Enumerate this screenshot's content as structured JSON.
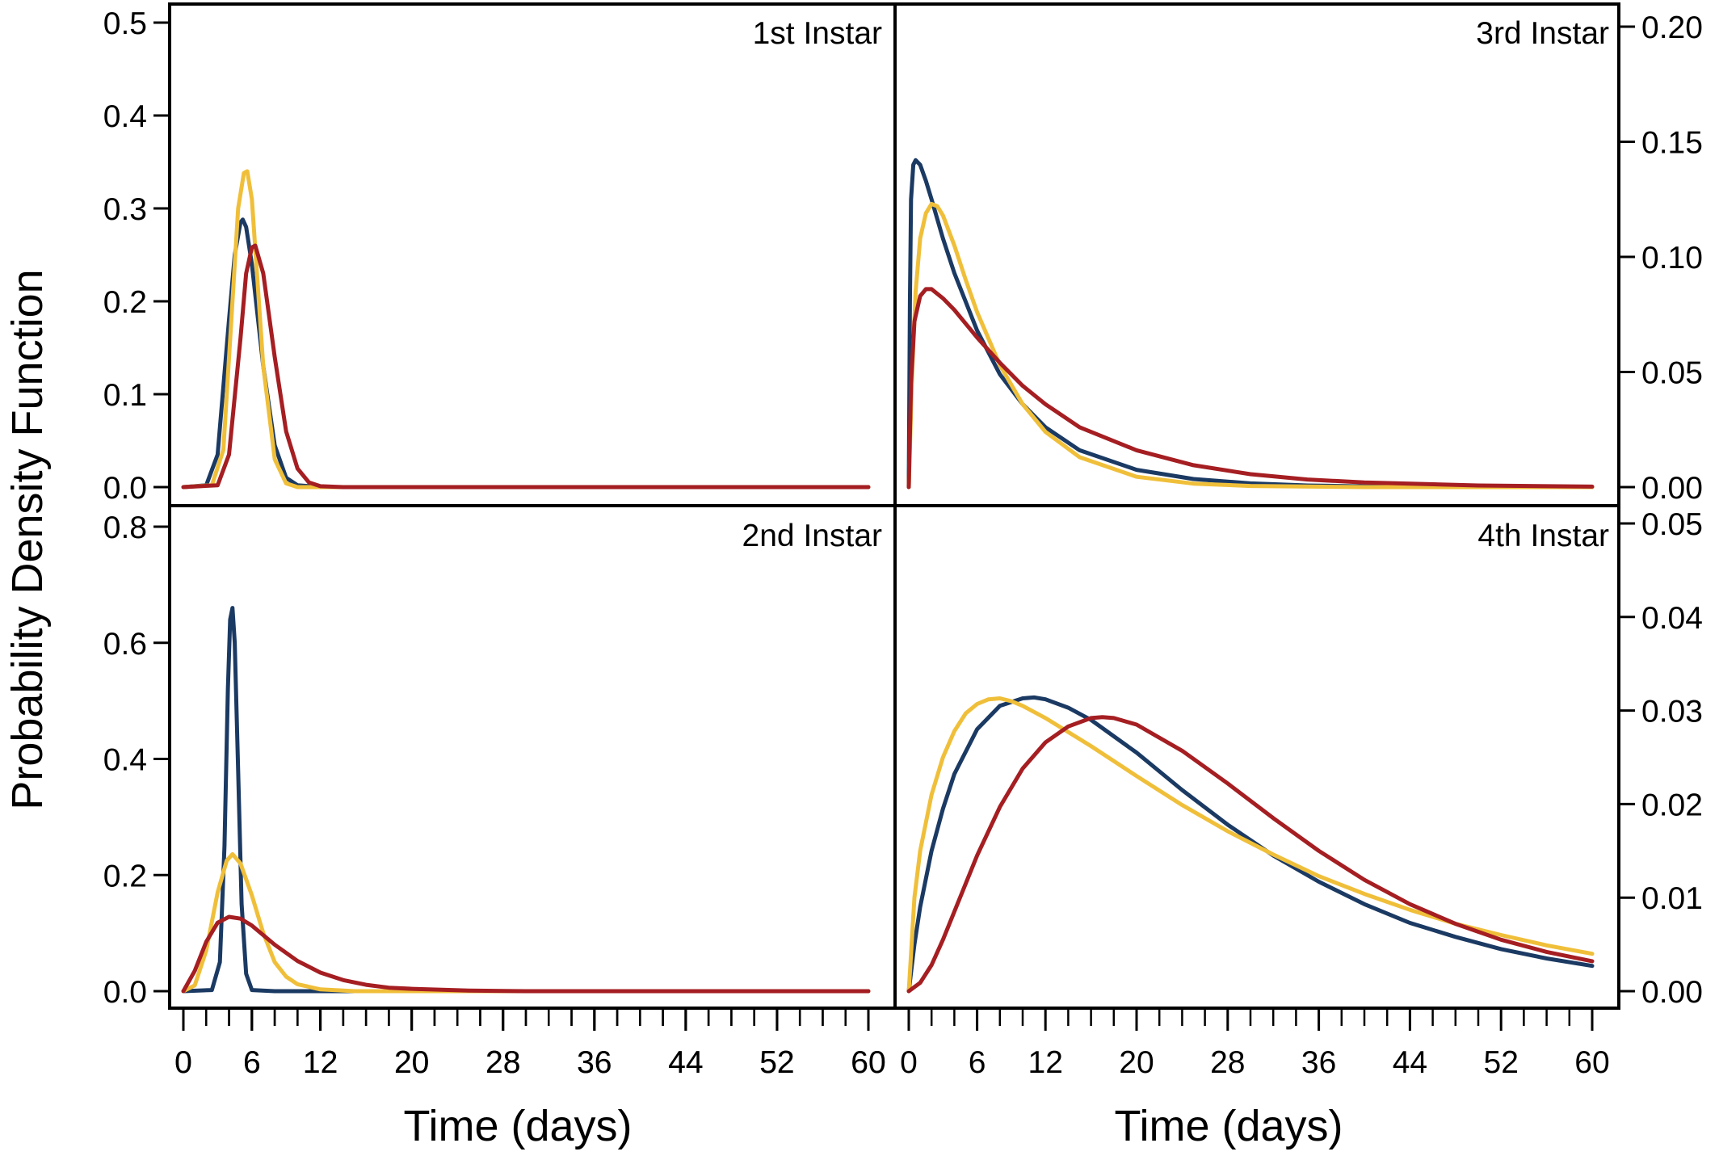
{
  "figure": {
    "ylabel": "Probability Density Function",
    "xlabel_left": "Time (days)",
    "xlabel_right": "Time (days)"
  },
  "series_colors": [
    "#1b3a63",
    "#f0bf3a",
    "#a51e22"
  ],
  "chart_data": [
    {
      "type": "line",
      "title": "1st Instar",
      "xlabel": "Time (days)",
      "ylabel": "Probability Density Function",
      "xlim": [
        0,
        60
      ],
      "ylim": [
        0,
        0.5
      ],
      "yticks": [
        "0.0",
        "0.1",
        "0.2",
        "0.3",
        "0.4",
        "0.5"
      ],
      "xticks": [
        "0",
        "6",
        "12",
        "20",
        "28",
        "36",
        "44",
        "52",
        "60"
      ],
      "yaxis_side": "left",
      "series": [
        {
          "color": "#1b3a63",
          "x": [
            0,
            2,
            3,
            4,
            4.5,
            5,
            5.2,
            5.5,
            6,
            7,
            8,
            9,
            10,
            12,
            20,
            60
          ],
          "y": [
            0,
            0.002,
            0.035,
            0.18,
            0.25,
            0.285,
            0.288,
            0.28,
            0.24,
            0.13,
            0.045,
            0.01,
            0.002,
            0,
            0,
            0
          ]
        },
        {
          "color": "#f0bf3a",
          "x": [
            0,
            2.5,
            3.5,
            4.2,
            4.8,
            5.3,
            5.6,
            6,
            6.5,
            7,
            8,
            9,
            10,
            12,
            20,
            60
          ],
          "y": [
            0,
            0.002,
            0.04,
            0.18,
            0.3,
            0.338,
            0.34,
            0.31,
            0.22,
            0.13,
            0.03,
            0.004,
            0,
            0,
            0,
            0
          ]
        },
        {
          "color": "#a51e22",
          "x": [
            0,
            3,
            4,
            5,
            5.5,
            6,
            6.3,
            7,
            8,
            9,
            10,
            11,
            12,
            14,
            20,
            60
          ],
          "y": [
            0,
            0.002,
            0.035,
            0.16,
            0.23,
            0.258,
            0.26,
            0.23,
            0.14,
            0.06,
            0.02,
            0.005,
            0.001,
            0,
            0,
            0
          ]
        }
      ]
    },
    {
      "type": "line",
      "title": "2nd Instar",
      "xlabel": "Time (days)",
      "ylabel": "Probability Density Function",
      "xlim": [
        0,
        60
      ],
      "ylim": [
        0,
        0.8
      ],
      "yticks": [
        "0.0",
        "0.2",
        "0.4",
        "0.6",
        "0.8"
      ],
      "xticks": [
        "0",
        "6",
        "12",
        "20",
        "28",
        "36",
        "44",
        "52",
        "60"
      ],
      "yaxis_side": "left",
      "series": [
        {
          "color": "#1b3a63",
          "x": [
            0,
            2.5,
            3.2,
            3.6,
            3.9,
            4.1,
            4.3,
            4.5,
            4.8,
            5.1,
            5.5,
            6,
            8,
            60
          ],
          "y": [
            0,
            0.002,
            0.05,
            0.25,
            0.52,
            0.64,
            0.66,
            0.6,
            0.38,
            0.15,
            0.03,
            0.002,
            0,
            0
          ]
        },
        {
          "color": "#f0bf3a",
          "x": [
            0,
            1,
            2,
            3,
            3.8,
            4.3,
            5,
            6,
            7,
            8,
            9,
            10,
            12,
            15,
            20,
            60
          ],
          "y": [
            0,
            0.01,
            0.07,
            0.17,
            0.225,
            0.236,
            0.22,
            0.165,
            0.1,
            0.05,
            0.025,
            0.012,
            0.003,
            0,
            0,
            0
          ]
        },
        {
          "color": "#a51e22",
          "x": [
            0,
            1,
            2,
            3,
            4,
            5,
            6,
            8,
            10,
            12,
            14,
            16,
            18,
            20,
            25,
            30,
            40,
            60
          ],
          "y": [
            0,
            0.035,
            0.085,
            0.118,
            0.128,
            0.125,
            0.113,
            0.08,
            0.052,
            0.032,
            0.019,
            0.011,
            0.006,
            0.004,
            0.001,
            0,
            0,
            0
          ]
        }
      ]
    },
    {
      "type": "line",
      "title": "3rd Instar",
      "xlabel": "Time (days)",
      "ylabel": "Probability Density Function",
      "xlim": [
        0,
        60
      ],
      "ylim": [
        0,
        0.2
      ],
      "yticks": [
        "0.00",
        "0.05",
        "0.10",
        "0.15",
        "0.20"
      ],
      "xticks": [
        "0",
        "6",
        "12",
        "20",
        "28",
        "36",
        "44",
        "52",
        "60"
      ],
      "yaxis_side": "right",
      "series": [
        {
          "color": "#1b3a63",
          "x": [
            0,
            0.1,
            0.2,
            0.4,
            0.6,
            1,
            1.5,
            2,
            3,
            4,
            6,
            8,
            10,
            12,
            15,
            20,
            25,
            30,
            35,
            40,
            50,
            60
          ],
          "y": [
            0,
            0.08,
            0.125,
            0.14,
            0.142,
            0.14,
            0.133,
            0.125,
            0.108,
            0.093,
            0.068,
            0.049,
            0.036,
            0.026,
            0.016,
            0.0075,
            0.0035,
            0.0016,
            0.0007,
            0.0003,
            0,
            0
          ]
        },
        {
          "color": "#f0bf3a",
          "x": [
            0,
            0.3,
            0.6,
            1,
            1.5,
            2,
            2.5,
            3,
            4,
            5,
            6,
            8,
            10,
            12,
            15,
            20,
            25,
            30,
            40,
            50,
            60
          ],
          "y": [
            0,
            0.05,
            0.085,
            0.108,
            0.119,
            0.123,
            0.122,
            0.118,
            0.105,
            0.09,
            0.076,
            0.053,
            0.036,
            0.024,
            0.013,
            0.0045,
            0.0015,
            0.0005,
            0,
            0,
            0
          ]
        },
        {
          "color": "#a51e22",
          "x": [
            0,
            0.2,
            0.5,
            1,
            1.5,
            2,
            3,
            4,
            6,
            8,
            10,
            12,
            15,
            20,
            25,
            30,
            35,
            40,
            50,
            60
          ],
          "y": [
            0,
            0.045,
            0.072,
            0.083,
            0.086,
            0.086,
            0.082,
            0.077,
            0.065,
            0.054,
            0.044,
            0.036,
            0.026,
            0.016,
            0.0095,
            0.0056,
            0.0033,
            0.002,
            0.0007,
            0.0002
          ]
        }
      ]
    },
    {
      "type": "line",
      "title": "4th Instar",
      "xlabel": "Time (days)",
      "ylabel": "Probability Density Function",
      "xlim": [
        0,
        60
      ],
      "ylim": [
        0,
        0.05
      ],
      "yticks": [
        "0.00",
        "0.01",
        "0.02",
        "0.03",
        "0.04",
        "0.05"
      ],
      "xticks": [
        "0",
        "6",
        "12",
        "20",
        "28",
        "36",
        "44",
        "52",
        "60"
      ],
      "yaxis_side": "right",
      "series": [
        {
          "color": "#1b3a63",
          "x": [
            0,
            0.5,
            1,
            2,
            3,
            4,
            6,
            8,
            10,
            11,
            12,
            14,
            16,
            20,
            24,
            28,
            32,
            36,
            40,
            44,
            48,
            52,
            56,
            60
          ],
          "y": [
            0,
            0.005,
            0.009,
            0.015,
            0.0195,
            0.0232,
            0.028,
            0.0305,
            0.0313,
            0.0314,
            0.0312,
            0.0303,
            0.029,
            0.0255,
            0.0215,
            0.0178,
            0.0145,
            0.0117,
            0.0093,
            0.0073,
            0.0058,
            0.0045,
            0.0035,
            0.0027
          ]
        },
        {
          "color": "#f0bf3a",
          "x": [
            0,
            0.5,
            1,
            2,
            3,
            4,
            5,
            6,
            7,
            8,
            9,
            10,
            12,
            16,
            20,
            24,
            28,
            32,
            36,
            40,
            44,
            48,
            52,
            56,
            60
          ],
          "y": [
            0,
            0.01,
            0.015,
            0.021,
            0.025,
            0.0278,
            0.0297,
            0.0307,
            0.0312,
            0.0313,
            0.031,
            0.0305,
            0.0292,
            0.0262,
            0.023,
            0.0199,
            0.0171,
            0.0146,
            0.0123,
            0.0104,
            0.0087,
            0.0072,
            0.006,
            0.0049,
            0.004
          ]
        },
        {
          "color": "#a51e22",
          "x": [
            0,
            1,
            2,
            3,
            4,
            6,
            8,
            10,
            12,
            14,
            16,
            17,
            18,
            20,
            24,
            28,
            32,
            36,
            40,
            44,
            48,
            52,
            56,
            60
          ],
          "y": [
            0,
            0.0009,
            0.0028,
            0.0055,
            0.0085,
            0.0145,
            0.0197,
            0.0238,
            0.0266,
            0.0283,
            0.0292,
            0.0293,
            0.0292,
            0.0285,
            0.0257,
            0.0222,
            0.0185,
            0.015,
            0.0119,
            0.0093,
            0.0072,
            0.0055,
            0.0042,
            0.0032
          ]
        }
      ]
    }
  ]
}
